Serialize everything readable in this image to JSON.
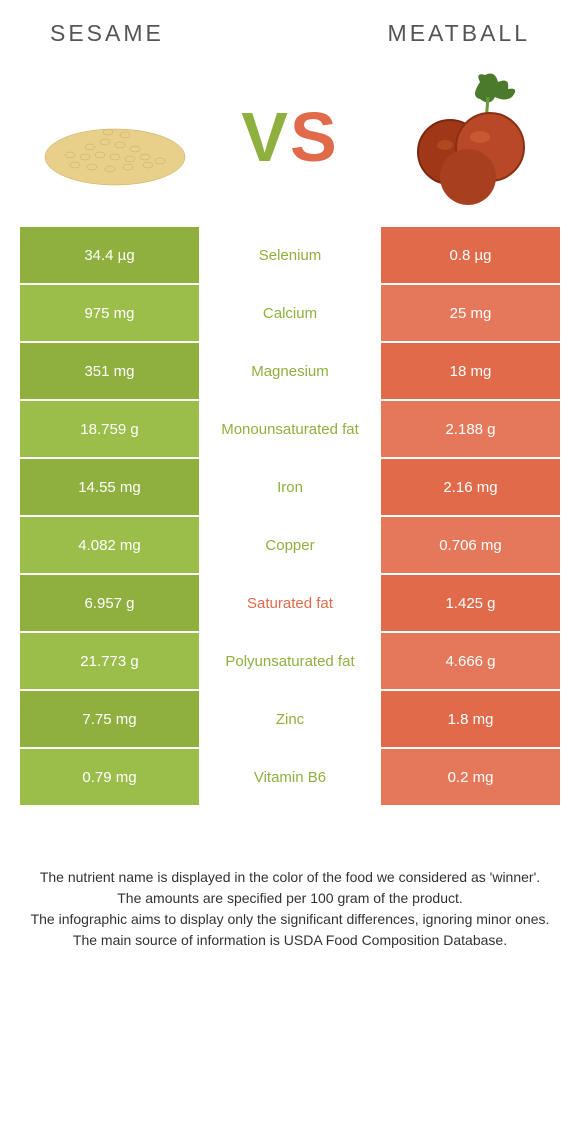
{
  "header": {
    "left_title": "Sesame",
    "right_title": "Meatball"
  },
  "vs": {
    "v": "V",
    "s": "S"
  },
  "colors": {
    "left_bg": "#8fb03e",
    "right_bg": "#e06a4a",
    "left_text": "#8fb03e",
    "right_text": "#e06a4a",
    "row_alt_left": "#9bbd4a",
    "row_alt_right": "#e5785a"
  },
  "rows": [
    {
      "nutrient": "Selenium",
      "left": "34.4 µg",
      "right": "0.8 µg",
      "winner": "left"
    },
    {
      "nutrient": "Calcium",
      "left": "975 mg",
      "right": "25 mg",
      "winner": "left"
    },
    {
      "nutrient": "Magnesium",
      "left": "351 mg",
      "right": "18 mg",
      "winner": "left"
    },
    {
      "nutrient": "Monounsaturated fat",
      "left": "18.759 g",
      "right": "2.188 g",
      "winner": "left"
    },
    {
      "nutrient": "Iron",
      "left": "14.55 mg",
      "right": "2.16 mg",
      "winner": "left"
    },
    {
      "nutrient": "Copper",
      "left": "4.082 mg",
      "right": "0.706 mg",
      "winner": "left"
    },
    {
      "nutrient": "Saturated fat",
      "left": "6.957 g",
      "right": "1.425 g",
      "winner": "right"
    },
    {
      "nutrient": "Polyunsaturated fat",
      "left": "21.773 g",
      "right": "4.666 g",
      "winner": "left"
    },
    {
      "nutrient": "Zinc",
      "left": "7.75 mg",
      "right": "1.8 mg",
      "winner": "left"
    },
    {
      "nutrient": "Vitamin B6",
      "left": "0.79 mg",
      "right": "0.2 mg",
      "winner": "left"
    }
  ],
  "footer": {
    "line1": "The nutrient name is displayed in the color of the food we considered as 'winner'.",
    "line2": "The amounts are specified per 100 gram of the product.",
    "line3": "The infographic aims to display only the significant differences, ignoring minor ones.",
    "line4": "The main source of information is USDA Food Composition Database."
  }
}
